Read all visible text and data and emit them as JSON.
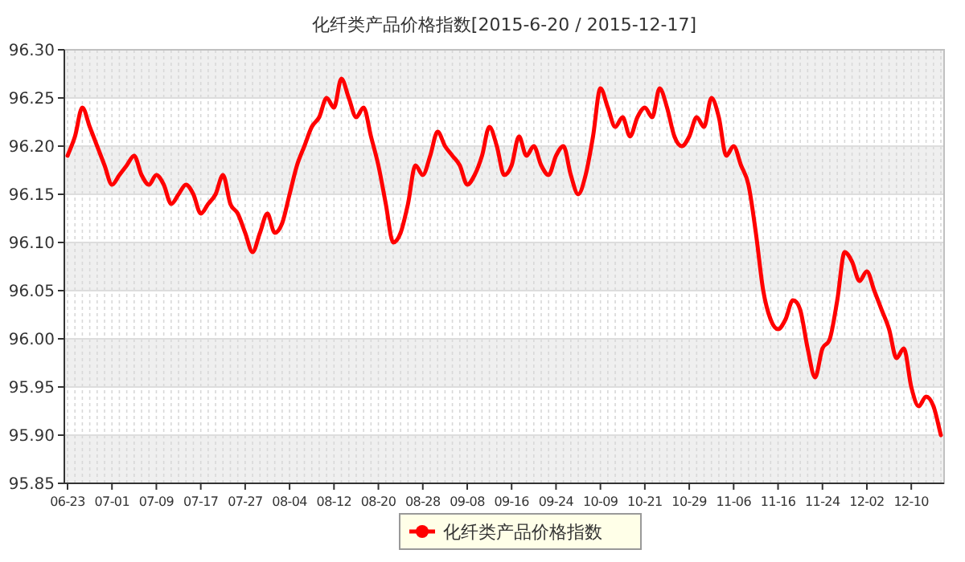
{
  "chart_data": {
    "type": "line",
    "title": "化纤类产品价格指数[2015-6-20 / 2015-12-17]",
    "categories": [
      "06-23",
      null,
      null,
      null,
      null,
      null,
      "07-01",
      null,
      null,
      null,
      null,
      null,
      "07-09",
      null,
      null,
      null,
      null,
      null,
      "07-17",
      null,
      null,
      null,
      null,
      null,
      "07-27",
      null,
      null,
      null,
      null,
      null,
      "08-04",
      null,
      null,
      null,
      null,
      null,
      "08-12",
      null,
      null,
      null,
      null,
      null,
      "08-20",
      null,
      null,
      null,
      null,
      null,
      "08-28",
      null,
      null,
      null,
      null,
      null,
      "09-08",
      null,
      null,
      null,
      null,
      null,
      "09-16",
      null,
      null,
      null,
      null,
      null,
      "09-24",
      null,
      null,
      null,
      null,
      null,
      "10-09",
      null,
      null,
      null,
      null,
      null,
      "10-21",
      null,
      null,
      null,
      null,
      null,
      "10-29",
      null,
      null,
      null,
      null,
      null,
      "11-06",
      null,
      null,
      null,
      null,
      null,
      "11-16",
      null,
      null,
      null,
      null,
      null,
      "11-24",
      null,
      null,
      null,
      null,
      null,
      "12-02",
      null,
      null,
      null,
      null,
      null,
      "12-10",
      null,
      null,
      null,
      null
    ],
    "series": [
      {
        "name": "化纤类产品价格指数",
        "color": "#ff0000",
        "values": [
          96.19,
          96.21,
          96.24,
          96.22,
          96.2,
          96.18,
          96.16,
          96.17,
          96.18,
          96.19,
          96.17,
          96.16,
          96.17,
          96.16,
          96.14,
          96.15,
          96.16,
          96.15,
          96.13,
          96.14,
          96.15,
          96.17,
          96.14,
          96.13,
          96.11,
          96.09,
          96.11,
          96.13,
          96.11,
          96.12,
          96.15,
          96.18,
          96.2,
          96.22,
          96.23,
          96.25,
          96.24,
          96.27,
          96.25,
          96.23,
          96.24,
          96.21,
          96.18,
          96.14,
          96.1,
          96.11,
          96.14,
          96.18,
          96.17,
          96.19,
          96.215,
          96.2,
          96.19,
          96.18,
          96.16,
          96.17,
          96.19,
          96.22,
          96.2,
          96.17,
          96.18,
          96.21,
          96.19,
          96.2,
          96.18,
          96.17,
          96.19,
          96.2,
          96.17,
          96.15,
          96.17,
          96.21,
          96.26,
          96.24,
          96.22,
          96.23,
          96.21,
          96.23,
          96.24,
          96.23,
          96.26,
          96.24,
          96.21,
          96.2,
          96.21,
          96.23,
          96.22,
          96.25,
          96.23,
          96.19,
          96.2,
          96.18,
          96.16,
          96.11,
          96.05,
          96.02,
          96.01,
          96.02,
          96.04,
          96.03,
          95.99,
          95.96,
          95.99,
          96.0,
          96.04,
          96.09,
          96.08,
          96.06,
          96.07,
          96.05,
          96.03,
          96.01,
          95.98,
          95.99,
          95.95,
          95.93,
          95.94,
          95.93,
          95.9
        ]
      }
    ],
    "ylim": [
      95.85,
      96.3
    ],
    "yticks": [
      {
        "value": 95.85,
        "label": "95.85"
      },
      {
        "value": 95.9,
        "label": "95.90"
      },
      {
        "value": 95.95,
        "label": "95.95"
      },
      {
        "value": 96.0,
        "label": "96.00"
      },
      {
        "value": 96.05,
        "label": "96.05"
      },
      {
        "value": 96.1,
        "label": "96.10"
      },
      {
        "value": 96.15,
        "label": "96.15"
      },
      {
        "value": 96.2,
        "label": "96.20"
      },
      {
        "value": 96.25,
        "label": "96.25"
      },
      {
        "value": 96.3,
        "label": "96.30"
      }
    ],
    "grid": true,
    "legend": "bottom",
    "marker": "none",
    "line_style": "solid"
  }
}
